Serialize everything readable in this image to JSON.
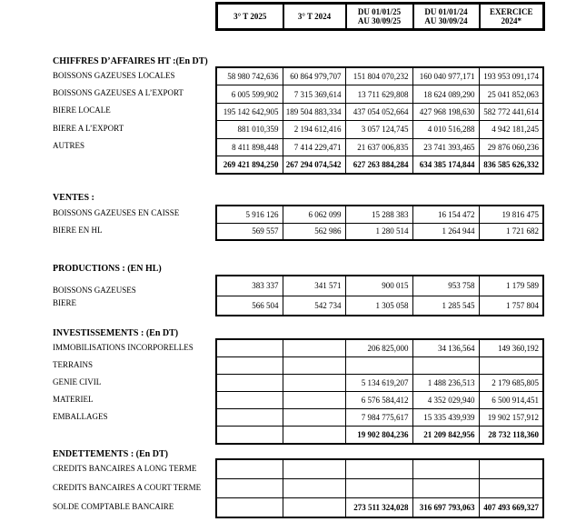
{
  "colors": {
    "text": "#000000",
    "border": "#000000",
    "background": "#ffffff"
  },
  "header": {
    "columns": [
      {
        "line1": "3° T 2025",
        "line2": ""
      },
      {
        "line1": "3° T 2024",
        "line2": ""
      },
      {
        "line1": "DU 01/01/25",
        "line2": "AU 30/09/25"
      },
      {
        "line1": "DU 01/01/24",
        "line2": "AU 30/09/24"
      },
      {
        "line1": "EXERCICE",
        "line2": "2024*"
      }
    ]
  },
  "sections": [
    {
      "title": "CHIFFRES D’AFFAIRES HT :(En DT)",
      "rows": [
        {
          "label": "BOISSONS GAZEUSES LOCALES",
          "bold": false,
          "values": [
            "58 980 742,636",
            "60 864 979,707",
            "151 804 070,232",
            "160 040 977,171",
            "193 953 091,174"
          ]
        },
        {
          "label": "BOISSONS GAZEUSES A L’EXPORT",
          "bold": false,
          "values": [
            "6 005 599,902",
            "7 315 369,614",
            "13 711 629,808",
            "18 624 089,290",
            "25 041 852,063"
          ]
        },
        {
          "label": "BIERE LOCALE",
          "bold": false,
          "values": [
            "195 142 642,905",
            "189 504 883,334",
            "437 054 052,664",
            "427 968 198,630",
            "582 772 441,614"
          ]
        },
        {
          "label": "BIERE A L’EXPORT",
          "bold": false,
          "values": [
            "881 010,359",
            "2 194 612,416",
            "3 057 124,745",
            "4 010 516,288",
            "4 942 181,245"
          ]
        },
        {
          "label": "AUTRES",
          "bold": false,
          "values": [
            "8 411 898,448",
            "7 414 229,471",
            "21 637 006,835",
            "23 741 393,465",
            "29 876 060,236"
          ]
        },
        {
          "label": "",
          "bold": true,
          "values": [
            "269 421 894,250",
            "267 294 074,542",
            "627 263 884,284",
            "634 385 174,844",
            "836 585 626,332"
          ]
        }
      ]
    },
    {
      "title": "VENTES :",
      "rows": [
        {
          "label": "BOISSONS GAZEUSES EN CAISSE",
          "bold": false,
          "values": [
            "5 916 126",
            "6 062 099",
            "15 288 383",
            "16 154 472",
            "19 816 475"
          ]
        },
        {
          "label": "BIERE EN HL",
          "bold": false,
          "values": [
            "569 557",
            "562 986",
            "1 280 514",
            "1 264 944",
            "1 721 682"
          ]
        }
      ]
    },
    {
      "title": "PRODUCTIONS : (EN HL)",
      "rows": [
        {
          "label": "BOISSONS GAZEUSES",
          "bold": false,
          "values": [
            "383 337",
            "341 571",
            "900 015",
            "953 758",
            "1 179 589"
          ]
        },
        {
          "label": "BIERE",
          "bold": false,
          "values": [
            "566 504",
            "542 734",
            "1 305 058",
            "1 285 545",
            "1 757 804"
          ]
        }
      ]
    },
    {
      "title": "INVESTISSEMENTS : (En DT)",
      "rows": [
        {
          "label": "IMMOBILISATIONS INCORPORELLES",
          "bold": false,
          "values": [
            "",
            "",
            "206 825,000",
            "34 136,564",
            "149 360,192"
          ]
        },
        {
          "label": "TERRAINS",
          "bold": false,
          "values": [
            "",
            "",
            "",
            "",
            ""
          ]
        },
        {
          "label": "GENIE CIVIL",
          "bold": false,
          "values": [
            "",
            "",
            "5 134 619,207",
            "1 488 236,513",
            "2 179 685,805"
          ]
        },
        {
          "label": "MATERIEL",
          "bold": false,
          "values": [
            "",
            "",
            "6 576 584,412",
            "4 352 029,940",
            "6 500 914,451"
          ]
        },
        {
          "label": "EMBALLAGES",
          "bold": false,
          "values": [
            "",
            "",
            "7 984 775,617",
            "15 335 439,939",
            "19 902 157,912"
          ]
        },
        {
          "label": "",
          "bold": true,
          "values": [
            "",
            "",
            "19 902 804,236",
            "21 209 842,956",
            "28 732 118,360"
          ]
        }
      ]
    },
    {
      "title": "ENDETTEMENTS : (En DT)",
      "rows": [
        {
          "label": "CREDITS BANCAIRES A LONG TERME",
          "bold": false,
          "values": [
            "",
            "",
            "",
            "",
            ""
          ]
        },
        {
          "label": "CREDITS BANCAIRES A COURT TERME",
          "bold": false,
          "values": [
            "",
            "",
            "",
            "",
            ""
          ]
        },
        {
          "label": "SOLDE COMPTABLE BANCAIRE",
          "bold": true,
          "values": [
            "",
            "",
            "273 511 324,028",
            "316 697 793,063",
            "407 493 669,327"
          ]
        }
      ]
    }
  ]
}
